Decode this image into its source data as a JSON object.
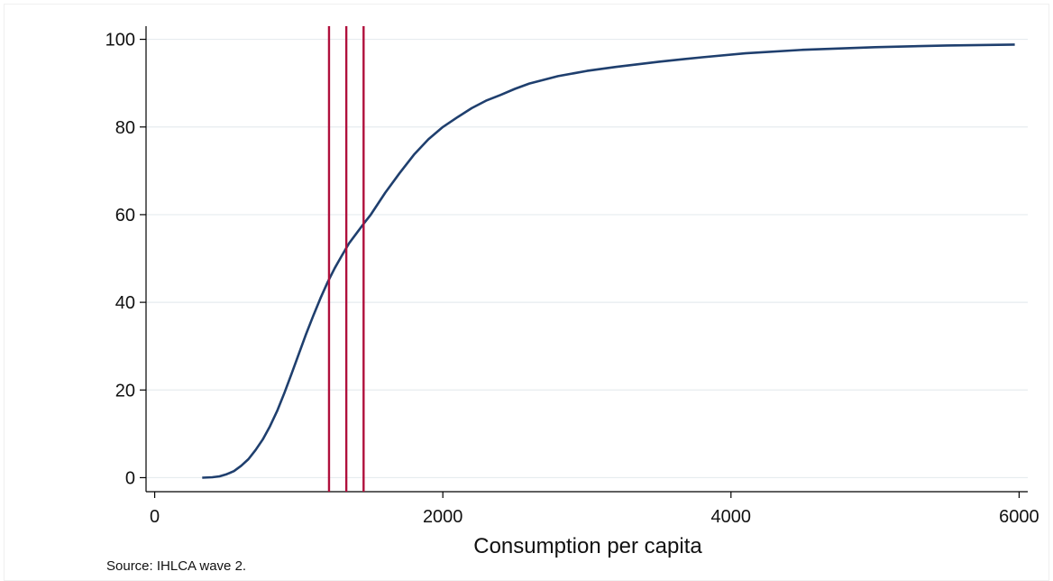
{
  "chart_data": {
    "type": "line",
    "title": "",
    "xlabel": "Consumption per capita",
    "ylabel": "",
    "xlim": [
      -60,
      6060
    ],
    "ylim": [
      -3.2,
      103
    ],
    "xticks": [
      0,
      2000,
      4000,
      6000
    ],
    "yticks": [
      0,
      20,
      40,
      60,
      80,
      100
    ],
    "grid": "horizontal",
    "legend": "none",
    "series": [
      {
        "color": "#1f3f6e",
        "x": [
          330,
          400,
          450,
          500,
          550,
          600,
          650,
          700,
          750,
          800,
          850,
          900,
          950,
          1000,
          1050,
          1100,
          1150,
          1200,
          1250,
          1300,
          1350,
          1400,
          1450,
          1500,
          1600,
          1700,
          1800,
          1900,
          2000,
          2100,
          2200,
          2300,
          2400,
          2500,
          2600,
          2800,
          3000,
          3200,
          3500,
          3800,
          4100,
          4500,
          5000,
          5500,
          5970
        ],
        "y": [
          0,
          0.1,
          0.3,
          0.8,
          1.5,
          2.7,
          4.2,
          6.3,
          8.7,
          11.7,
          15.2,
          19.3,
          23.7,
          28.2,
          32.7,
          36.9,
          40.9,
          44.6,
          47.8,
          50.7,
          53.5,
          55.7,
          57.9,
          60.0,
          65.0,
          69.5,
          73.7,
          77.2,
          80.0,
          82.2,
          84.3,
          86.0,
          87.3,
          88.7,
          89.9,
          91.6,
          92.8,
          93.7,
          94.9,
          95.9,
          96.8,
          97.6,
          98.2,
          98.6,
          98.8
        ]
      }
    ],
    "reference_lines": [
      {
        "axis": "x",
        "value": 1210,
        "color": "#b0103c"
      },
      {
        "axis": "x",
        "value": 1330,
        "color": "#b0103c"
      },
      {
        "axis": "x",
        "value": 1450,
        "color": "#b0103c"
      }
    ]
  },
  "note": "Source: IHLCA wave 2."
}
